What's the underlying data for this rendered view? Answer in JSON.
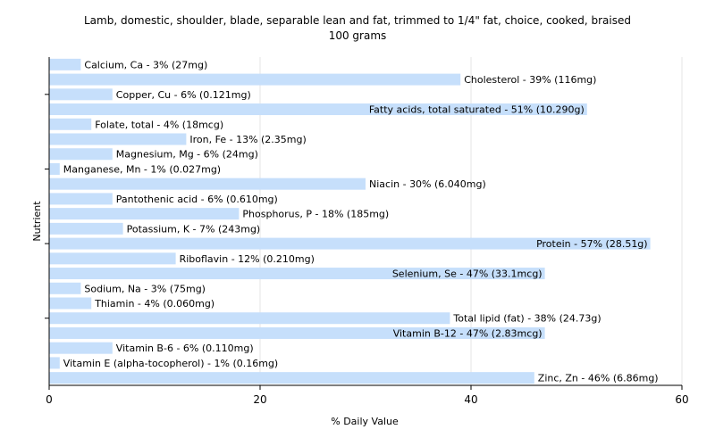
{
  "chart_data": {
    "type": "bar",
    "orientation": "horizontal",
    "title": "Lamb, domestic, shoulder, blade, separable lean and fat, trimmed to 1/4\" fat, choice, cooked, braised",
    "subtitle": "100 grams",
    "xlabel": "% Daily Value",
    "ylabel": "Nutrient",
    "xlim": [
      0,
      60
    ],
    "xticks": [
      0,
      20,
      40,
      60
    ],
    "grid": true,
    "bar_color": "#c6dffb",
    "categories": [
      "Calcium, Ca",
      "Cholesterol",
      "Copper, Cu",
      "Fatty acids, total saturated",
      "Folate, total",
      "Iron, Fe",
      "Magnesium, Mg",
      "Manganese, Mn",
      "Niacin",
      "Pantothenic acid",
      "Phosphorus, P",
      "Potassium, K",
      "Protein",
      "Riboflavin",
      "Selenium, Se",
      "Sodium, Na",
      "Thiamin",
      "Total lipid (fat)",
      "Vitamin B-12",
      "Vitamin B-6",
      "Vitamin E (alpha-tocopherol)",
      "Zinc, Zn"
    ],
    "values": [
      3,
      39,
      6,
      51,
      4,
      13,
      6,
      1,
      30,
      6,
      18,
      7,
      57,
      12,
      47,
      3,
      4,
      38,
      47,
      6,
      1,
      46
    ],
    "labels": [
      "Calcium, Ca - 3% (27mg)",
      "Cholesterol - 39% (116mg)",
      "Copper, Cu - 6% (0.121mg)",
      "Fatty acids, total saturated - 51% (10.290g)",
      "Folate, total - 4% (18mcg)",
      "Iron, Fe - 13% (2.35mg)",
      "Magnesium, Mg - 6% (24mg)",
      "Manganese, Mn - 1% (0.027mg)",
      "Niacin - 30% (6.040mg)",
      "Pantothenic acid - 6% (0.610mg)",
      "Phosphorus, P - 18% (185mg)",
      "Potassium, K - 7% (243mg)",
      "Protein - 57% (28.51g)",
      "Riboflavin - 12% (0.210mg)",
      "Selenium, Se - 47% (33.1mcg)",
      "Sodium, Na - 3% (75mg)",
      "Thiamin - 4% (0.060mg)",
      "Total lipid (fat) - 38% (24.73g)",
      "Vitamin B-12 - 47% (2.83mcg)",
      "Vitamin B-6 - 6% (0.110mg)",
      "Vitamin E (alpha-tocopherol) - 1% (0.16mg)",
      "Zinc, Zn - 46% (6.86mg)"
    ]
  }
}
